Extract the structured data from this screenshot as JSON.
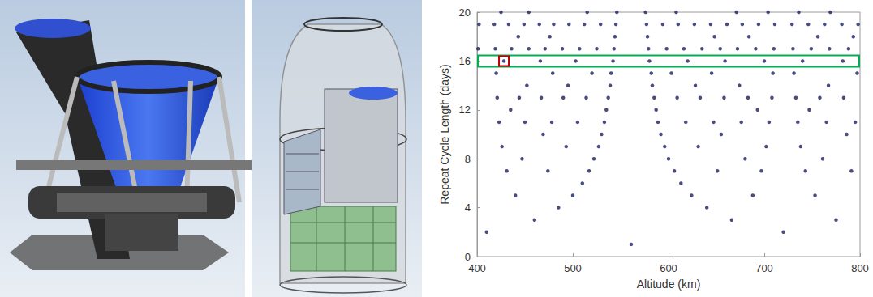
{
  "chart_data": {
    "type": "scatter",
    "x_label": "Altitude (km)",
    "y_label": "Repeat Cycle Length (days)",
    "color": "#1b1f5e",
    "marker": "circle",
    "grid": false,
    "xlim": [
      400,
      800
    ],
    "xticks": [
      400,
      500,
      600,
      700,
      800
    ],
    "ylim": [
      0,
      20
    ],
    "yticks": [
      0,
      4,
      8,
      12,
      16,
      20
    ],
    "x": [
      561,
      410,
      720,
      460,
      666,
      775,
      485,
      640,
      440,
      500,
      624,
      688,
      753,
      510,
      613,
      431,
      474,
      517,
      606,
      651,
      697,
      743,
      791,
      447,
      522,
      600,
      680,
      761,
      426,
      493,
      527,
      596,
      631,
      702,
      738,
      469,
      530,
      592,
      655,
      786,
      423,
      450,
      478,
      505,
      533,
      589,
      618,
      647,
      676,
      705,
      735,
      765,
      795,
      435,
      535,
      587,
      693,
      747,
      421,
      444,
      467,
      490,
      514,
      537,
      585,
      609,
      633,
      658,
      683,
      708,
      733,
      758,
      783,
      452,
      495,
      539,
      583,
      628,
      674,
      767,
      420,
      479,
      520,
      540,
      582,
      603,
      645,
      709,
      731,
      797,
      428,
      466,
      503,
      542,
      580,
      620,
      659,
      700,
      740,
      782,
      401,
      419,
      436,
      454,
      471,
      489,
      507,
      525,
      543,
      579,
      598,
      616,
      635,
      654,
      672,
      691,
      710,
      730,
      749,
      768,
      788,
      443,
      476,
      544,
      578,
      648,
      684,
      756,
      793,
      402,
      418,
      433,
      449,
      465,
      480,
      496,
      512,
      529,
      545,
      577,
      594,
      610,
      627,
      644,
      661,
      677,
      694,
      711,
      729,
      746,
      763,
      781,
      798,
      425,
      454,
      515,
      546,
      576,
      608,
      671,
      704,
      736,
      769
    ],
    "values": [
      1,
      2,
      2,
      3,
      3,
      3,
      4,
      4,
      5,
      5,
      5,
      5,
      5,
      6,
      6,
      7,
      7,
      7,
      7,
      7,
      7,
      7,
      7,
      8,
      8,
      8,
      8,
      8,
      9,
      9,
      9,
      9,
      9,
      9,
      9,
      10,
      10,
      10,
      10,
      10,
      11,
      11,
      11,
      11,
      11,
      11,
      11,
      11,
      11,
      11,
      11,
      11,
      11,
      12,
      12,
      12,
      12,
      12,
      13,
      13,
      13,
      13,
      13,
      13,
      13,
      13,
      13,
      13,
      13,
      13,
      13,
      13,
      13,
      14,
      14,
      14,
      14,
      14,
      14,
      14,
      15,
      15,
      15,
      15,
      15,
      15,
      15,
      15,
      15,
      15,
      16,
      16,
      16,
      16,
      16,
      16,
      16,
      16,
      16,
      16,
      17,
      17,
      17,
      17,
      17,
      17,
      17,
      17,
      17,
      17,
      17,
      17,
      17,
      17,
      17,
      17,
      17,
      17,
      17,
      17,
      17,
      18,
      18,
      18,
      18,
      18,
      18,
      18,
      18,
      19,
      19,
      19,
      19,
      19,
      19,
      19,
      19,
      19,
      19,
      19,
      19,
      19,
      19,
      19,
      19,
      19,
      19,
      19,
      19,
      19,
      19,
      19,
      19,
      20,
      20,
      20,
      20,
      20,
      20,
      20,
      20,
      20,
      20
    ],
    "annotations": [
      {
        "type": "rect",
        "y": 16,
        "color": "#00b050"
      },
      {
        "type": "point",
        "x": 428,
        "y": 16,
        "color": "#c00000"
      }
    ]
  }
}
